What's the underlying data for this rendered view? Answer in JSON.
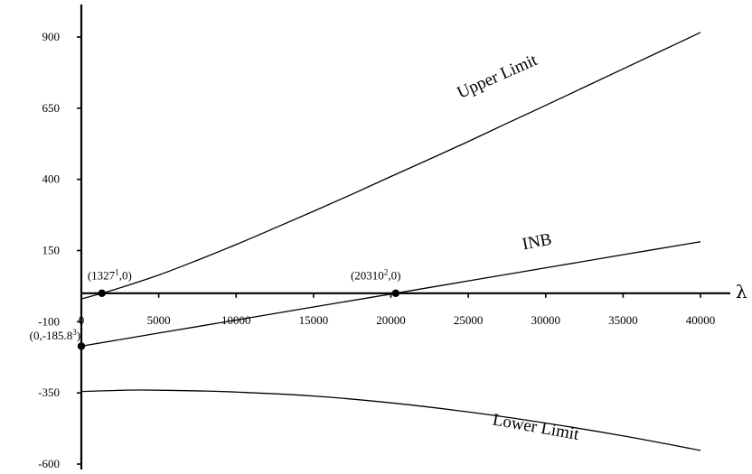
{
  "chart_data": {
    "type": "line",
    "title": "",
    "xlabel": "λ",
    "ylabel": "",
    "xlim": [
      0,
      40000
    ],
    "ylim": [
      -600,
      960
    ],
    "x_axis_crosses_y_at": 0,
    "grid": false,
    "x_ticks": [
      {
        "value": 0,
        "label": "0"
      },
      {
        "value": 5000,
        "label": "5000"
      },
      {
        "value": 10000,
        "label": "10000"
      },
      {
        "value": 15000,
        "label": "15000"
      },
      {
        "value": 20000,
        "label": "20000"
      },
      {
        "value": 25000,
        "label": "25000"
      },
      {
        "value": 30000,
        "label": "30000"
      },
      {
        "value": 35000,
        "label": "35000"
      },
      {
        "value": 40000,
        "label": "40000"
      }
    ],
    "y_ticks": [
      {
        "value": 900,
        "label": "900"
      },
      {
        "value": 650,
        "label": "650"
      },
      {
        "value": 400,
        "label": "400"
      },
      {
        "value": 150,
        "label": "150"
      },
      {
        "value": -100,
        "label": "-100"
      },
      {
        "value": -350,
        "label": "-350"
      },
      {
        "value": -600,
        "label": "-600"
      }
    ],
    "series": [
      {
        "name": "Upper Limit",
        "x": [
          0,
          1327,
          2500,
          5000,
          7500,
          10000,
          12500,
          15000,
          17500,
          20000,
          22500,
          25000,
          27500,
          30000,
          32500,
          35000,
          37500,
          40000
        ],
        "y": [
          -20,
          0,
          19,
          64,
          116,
          171,
          229,
          288,
          348,
          410,
          471,
          533,
          597,
          660,
          724,
          788,
          852,
          916
        ]
      },
      {
        "name": "INB",
        "x": [
          0,
          5000,
          10000,
          15000,
          20000,
          20310,
          25000,
          30000,
          35000,
          40000
        ],
        "y": [
          -185.8,
          -139.9,
          -94.1,
          -48.2,
          -2.8,
          0,
          43.4,
          89.3,
          135.2,
          181
        ]
      },
      {
        "name": "Lower Limit",
        "x": [
          0,
          2500,
          4000,
          7500,
          10000,
          15000,
          20000,
          25000,
          30000,
          35000,
          40000
        ],
        "y": [
          -345,
          -341,
          -340,
          -343,
          -347,
          -361,
          -385,
          -417,
          -456,
          -501,
          -552
        ]
      }
    ],
    "curve_labels": [
      {
        "series": "Upper Limit",
        "text": "Upper Limit",
        "x": 27000,
        "y": 745,
        "angle_deg": -24
      },
      {
        "series": "INB",
        "text": "INB",
        "x": 29500,
        "y": 163,
        "angle_deg": -11
      },
      {
        "series": "Lower Limit",
        "text": "Lower Limit",
        "x": 29300,
        "y": -488,
        "angle_deg": 10
      }
    ],
    "annotations": [
      {
        "x": 1327,
        "y": 0,
        "text": "(1327",
        "sup": "1",
        "suffix": ",0)",
        "anchor": "start",
        "label_x": 400,
        "label_y": 48
      },
      {
        "x": 20310,
        "y": 0,
        "text": "(20310",
        "sup": "2",
        "suffix": ",0)",
        "anchor": "start",
        "label_x": 17400,
        "label_y": 48
      },
      {
        "x": 0,
        "y": -185.8,
        "text": "(0,-185.8",
        "sup": "3",
        "suffix": ")",
        "anchor": "end",
        "label_x": -50,
        "label_y": -162
      }
    ]
  }
}
